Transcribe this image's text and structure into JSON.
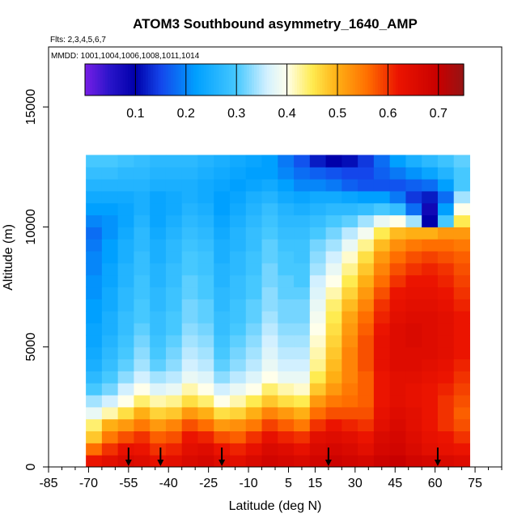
{
  "chart_data": {
    "type": "heatmap",
    "title": "ATOM3 Southbound asymmetry_1640_AMP",
    "flights_label": "Flts: 2,3,4,5,6,7",
    "dates_label": "MMDD: 1001,1004,1006,1008,1011,1014",
    "xlabel": "Latitude (deg N)",
    "ylabel": "Altitude (m)",
    "xlim": [
      -85,
      85
    ],
    "ylim": [
      0,
      17500
    ],
    "x_ticks": [
      -85,
      -70,
      -55,
      -40,
      -25,
      -10,
      5,
      15,
      30,
      45,
      60,
      75
    ],
    "x_tick_labels": [
      "-85",
      "-70",
      "-55",
      "-40",
      "-25",
      "-10",
      "5",
      "15",
      "30",
      "45",
      "60",
      "75"
    ],
    "y_ticks": [
      0,
      5000,
      10000,
      15000
    ],
    "y_tick_labels": [
      "0",
      "5000",
      "10000",
      "15000"
    ],
    "colorbar": {
      "range": [
        0.0,
        0.75
      ],
      "ticks": [
        0.1,
        0.2,
        0.3,
        0.4,
        0.5,
        0.6,
        0.7
      ],
      "tick_labels": [
        "0.1",
        "0.2",
        "0.3",
        "0.4",
        "0.5",
        "0.6",
        "0.7"
      ]
    },
    "profile_latitudes": [
      -55,
      -43,
      -20,
      20,
      61
    ],
    "altitude_bins_m": [
      250,
      750,
      1250,
      1750,
      2250,
      2750,
      3250,
      3750,
      4250,
      4750,
      5250,
      5750,
      6250,
      6750,
      7250,
      7750,
      8250,
      8750,
      9250,
      9750,
      10250,
      10750,
      11250,
      11750,
      12250,
      12750
    ],
    "latitude_bins": [
      -68,
      -62,
      -56,
      -50,
      -44,
      -38,
      -32,
      -26,
      -20,
      -14,
      -8,
      -2,
      4,
      10,
      16,
      22,
      28,
      34,
      40,
      46,
      52,
      58,
      64,
      70
    ],
    "values": [
      [
        0.62,
        0.64,
        0.66,
        0.65,
        0.63,
        0.64,
        0.66,
        0.67,
        0.65,
        0.64,
        0.66,
        0.68,
        0.67,
        0.66,
        0.68,
        0.69,
        0.68,
        0.67,
        0.69,
        0.7,
        0.68,
        0.67,
        0.66,
        0.65
      ],
      [
        0.56,
        0.6,
        0.63,
        0.62,
        0.6,
        0.61,
        0.64,
        0.65,
        0.62,
        0.61,
        0.63,
        0.66,
        0.65,
        0.63,
        0.66,
        0.67,
        0.66,
        0.64,
        0.67,
        0.68,
        0.66,
        0.64,
        0.63,
        0.62
      ],
      [
        0.48,
        0.55,
        0.58,
        0.6,
        0.57,
        0.58,
        0.62,
        0.61,
        0.58,
        0.57,
        0.6,
        0.63,
        0.61,
        0.6,
        0.64,
        0.65,
        0.64,
        0.62,
        0.66,
        0.67,
        0.65,
        0.63,
        0.62,
        0.6
      ],
      [
        0.44,
        0.5,
        0.52,
        0.55,
        0.52,
        0.54,
        0.58,
        0.56,
        0.52,
        0.53,
        0.55,
        0.59,
        0.57,
        0.55,
        0.6,
        0.62,
        0.61,
        0.6,
        0.64,
        0.66,
        0.64,
        0.62,
        0.6,
        0.58
      ],
      [
        0.38,
        0.42,
        0.46,
        0.5,
        0.47,
        0.48,
        0.52,
        0.5,
        0.46,
        0.47,
        0.5,
        0.54,
        0.52,
        0.5,
        0.56,
        0.58,
        0.58,
        0.58,
        0.63,
        0.65,
        0.64,
        0.62,
        0.6,
        0.57
      ],
      [
        0.34,
        0.36,
        0.4,
        0.44,
        0.42,
        0.43,
        0.46,
        0.44,
        0.4,
        0.42,
        0.45,
        0.48,
        0.46,
        0.45,
        0.52,
        0.55,
        0.56,
        0.57,
        0.62,
        0.64,
        0.63,
        0.62,
        0.6,
        0.58
      ],
      [
        0.3,
        0.32,
        0.36,
        0.4,
        0.37,
        0.38,
        0.42,
        0.4,
        0.36,
        0.38,
        0.4,
        0.44,
        0.42,
        0.41,
        0.48,
        0.52,
        0.55,
        0.57,
        0.62,
        0.64,
        0.63,
        0.62,
        0.61,
        0.59
      ],
      [
        0.27,
        0.3,
        0.33,
        0.36,
        0.34,
        0.35,
        0.38,
        0.37,
        0.33,
        0.35,
        0.37,
        0.4,
        0.38,
        0.38,
        0.45,
        0.5,
        0.54,
        0.57,
        0.62,
        0.64,
        0.64,
        0.63,
        0.62,
        0.6
      ],
      [
        0.25,
        0.28,
        0.31,
        0.34,
        0.31,
        0.33,
        0.36,
        0.35,
        0.31,
        0.33,
        0.35,
        0.38,
        0.36,
        0.36,
        0.43,
        0.49,
        0.54,
        0.58,
        0.63,
        0.65,
        0.65,
        0.64,
        0.63,
        0.61
      ],
      [
        0.24,
        0.27,
        0.3,
        0.33,
        0.3,
        0.32,
        0.35,
        0.34,
        0.3,
        0.32,
        0.34,
        0.37,
        0.35,
        0.35,
        0.42,
        0.48,
        0.54,
        0.58,
        0.63,
        0.65,
        0.65,
        0.65,
        0.64,
        0.62
      ],
      [
        0.23,
        0.26,
        0.29,
        0.32,
        0.29,
        0.31,
        0.34,
        0.33,
        0.29,
        0.31,
        0.33,
        0.36,
        0.34,
        0.34,
        0.41,
        0.47,
        0.53,
        0.58,
        0.63,
        0.65,
        0.66,
        0.65,
        0.64,
        0.62
      ],
      [
        0.23,
        0.25,
        0.28,
        0.31,
        0.28,
        0.3,
        0.33,
        0.32,
        0.28,
        0.3,
        0.32,
        0.35,
        0.33,
        0.33,
        0.4,
        0.46,
        0.52,
        0.57,
        0.62,
        0.65,
        0.66,
        0.65,
        0.64,
        0.62
      ],
      [
        0.22,
        0.25,
        0.28,
        0.3,
        0.28,
        0.3,
        0.32,
        0.31,
        0.28,
        0.29,
        0.31,
        0.34,
        0.32,
        0.32,
        0.39,
        0.45,
        0.51,
        0.56,
        0.61,
        0.64,
        0.65,
        0.65,
        0.64,
        0.62
      ],
      [
        0.22,
        0.24,
        0.27,
        0.3,
        0.27,
        0.29,
        0.32,
        0.31,
        0.27,
        0.29,
        0.31,
        0.33,
        0.32,
        0.32,
        0.38,
        0.44,
        0.49,
        0.54,
        0.6,
        0.63,
        0.64,
        0.64,
        0.63,
        0.61
      ],
      [
        0.21,
        0.24,
        0.27,
        0.29,
        0.27,
        0.29,
        0.31,
        0.3,
        0.27,
        0.28,
        0.3,
        0.33,
        0.31,
        0.31,
        0.37,
        0.42,
        0.47,
        0.52,
        0.58,
        0.62,
        0.63,
        0.63,
        0.62,
        0.6
      ],
      [
        0.21,
        0.23,
        0.26,
        0.29,
        0.26,
        0.28,
        0.31,
        0.3,
        0.26,
        0.28,
        0.3,
        0.32,
        0.31,
        0.3,
        0.36,
        0.4,
        0.45,
        0.5,
        0.56,
        0.6,
        0.62,
        0.62,
        0.61,
        0.59
      ],
      [
        0.2,
        0.23,
        0.26,
        0.28,
        0.26,
        0.28,
        0.3,
        0.29,
        0.26,
        0.27,
        0.29,
        0.32,
        0.3,
        0.3,
        0.34,
        0.38,
        0.43,
        0.48,
        0.54,
        0.58,
        0.6,
        0.61,
        0.6,
        0.58
      ],
      [
        0.2,
        0.22,
        0.25,
        0.28,
        0.25,
        0.27,
        0.3,
        0.29,
        0.25,
        0.27,
        0.29,
        0.31,
        0.3,
        0.29,
        0.33,
        0.36,
        0.41,
        0.46,
        0.52,
        0.56,
        0.58,
        0.59,
        0.58,
        0.57
      ],
      [
        0.19,
        0.22,
        0.25,
        0.27,
        0.25,
        0.27,
        0.29,
        0.28,
        0.25,
        0.26,
        0.28,
        0.31,
        0.29,
        0.29,
        0.32,
        0.34,
        0.38,
        0.43,
        0.49,
        0.53,
        0.55,
        0.56,
        0.56,
        0.55
      ],
      [
        0.18,
        0.21,
        0.24,
        0.27,
        0.24,
        0.26,
        0.28,
        0.27,
        0.24,
        0.26,
        0.28,
        0.3,
        0.28,
        0.28,
        0.3,
        0.32,
        0.35,
        0.39,
        0.45,
        0.49,
        0.5,
        0.5,
        0.52,
        0.52
      ],
      [
        0.2,
        0.21,
        0.23,
        0.26,
        0.23,
        0.25,
        0.27,
        0.26,
        0.23,
        0.25,
        0.27,
        0.29,
        0.27,
        0.27,
        0.28,
        0.3,
        0.31,
        0.34,
        0.38,
        0.4,
        0.34,
        0.1,
        0.3,
        0.45
      ],
      [
        0.22,
        0.22,
        0.23,
        0.25,
        0.23,
        0.24,
        0.26,
        0.25,
        0.22,
        0.24,
        0.26,
        0.28,
        0.26,
        0.25,
        0.26,
        0.27,
        0.27,
        0.28,
        0.3,
        0.28,
        0.18,
        0.08,
        0.22,
        0.4
      ],
      [
        0.24,
        0.24,
        0.24,
        0.25,
        0.23,
        0.24,
        0.25,
        0.24,
        0.22,
        0.23,
        0.25,
        0.26,
        0.24,
        0.23,
        0.24,
        0.24,
        0.23,
        0.22,
        0.22,
        0.19,
        0.14,
        0.12,
        0.18,
        0.34
      ],
      [
        0.26,
        0.26,
        0.26,
        0.26,
        0.25,
        0.25,
        0.25,
        0.24,
        0.23,
        0.22,
        0.23,
        0.24,
        0.22,
        0.2,
        0.2,
        0.19,
        0.17,
        0.16,
        0.16,
        0.16,
        0.17,
        0.18,
        0.22,
        0.3
      ],
      [
        0.28,
        0.28,
        0.27,
        0.27,
        0.26,
        0.26,
        0.26,
        0.25,
        0.24,
        0.23,
        0.22,
        0.22,
        0.2,
        0.18,
        0.17,
        0.16,
        0.15,
        0.15,
        0.17,
        0.19,
        0.21,
        0.23,
        0.26,
        0.3
      ],
      [
        0.3,
        0.3,
        0.29,
        0.28,
        0.27,
        0.27,
        0.27,
        0.26,
        0.25,
        0.24,
        0.23,
        0.22,
        0.19,
        0.16,
        0.12,
        0.1,
        0.11,
        0.14,
        0.18,
        0.22,
        0.25,
        0.27,
        0.29,
        0.31
      ]
    ]
  }
}
